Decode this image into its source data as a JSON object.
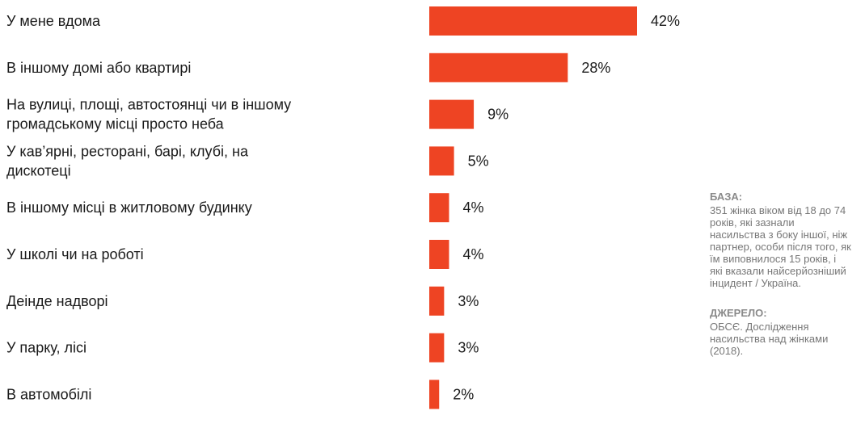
{
  "chart_data": {
    "type": "bar",
    "orientation": "horizontal",
    "categories": [
      [
        "У мене вдома"
      ],
      [
        "В іншому домі або квартирі"
      ],
      [
        "На вулиці, площі, автостоянці чи в іншому",
        "громадському місці просто неба"
      ],
      [
        "У кав’ярні, ресторані, барі, клубі, на",
        "дискотеці"
      ],
      [
        "В іншому місці в житловому будинку"
      ],
      [
        "У школі чи на роботі"
      ],
      [
        "Деінде надворі"
      ],
      [
        "У парку, лісі"
      ],
      [
        "В автомобілі"
      ]
    ],
    "values": [
      42,
      28,
      9,
      5,
      4,
      4,
      3,
      3,
      2
    ],
    "value_labels": [
      "42%",
      "28%",
      "9%",
      "5%",
      "4%",
      "4%",
      "3%",
      "3%",
      "2%"
    ],
    "xlim": [
      0,
      42
    ],
    "bar_color": "#ee4423",
    "grid": false,
    "title": "",
    "xlabel": "",
    "ylabel": ""
  },
  "notes": {
    "base_heading": "БАЗА:",
    "base_text": "351 жінка віком від 18 до 74 років, які зазнали насильства з боку іншої, ніж партнер, особи після того, як їм виповнилося 15 років, і які вказали найсерйозніший інцидент / Україна.",
    "source_heading": "ДЖЕРЕЛО:",
    "source_text": "ОБСЄ. Дослідження насильства над жінками (2018)."
  }
}
